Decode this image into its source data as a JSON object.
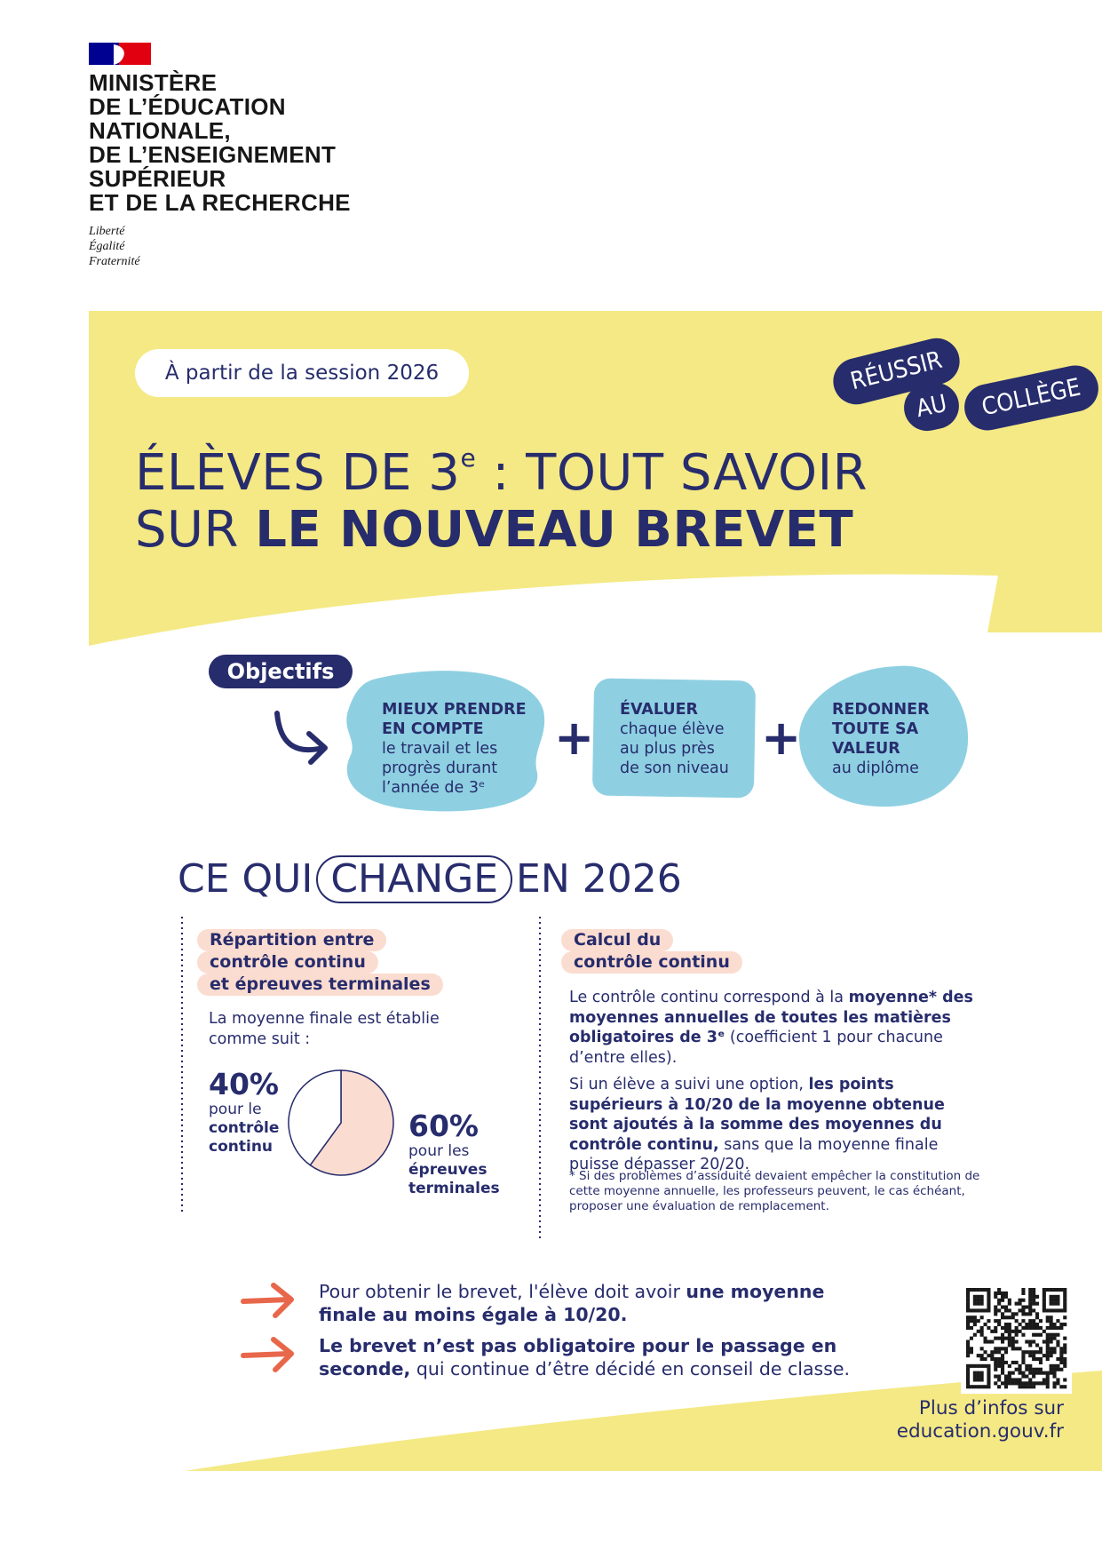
{
  "colors": {
    "navy": "#272c6c",
    "yellow": "#f4e984",
    "blue": "#8ed0e2",
    "pink": "#fbdcd0",
    "orange": "#e8674a",
    "pie_terminal": "#fbdcd0",
    "pie_continu": "#ffffff"
  },
  "logo": {
    "ministry_lines": [
      "MINISTÈRE",
      "DE L’ÉDUCATION",
      "NATIONALE,",
      "DE L’ENSEIGNEMENT",
      "SUPÉRIEUR",
      "ET DE LA RECHERCHE"
    ],
    "devise": [
      "Liberté",
      "Égalité",
      "Fraternité"
    ],
    "icon": "marianne-flag-icon"
  },
  "header": {
    "session": "À partir de la session 2026",
    "title_line1": "ÉLÈVES DE 3",
    "title_sup": "e",
    "title_line1_end": " : TOUT SAVOIR",
    "title_line2_regular": "SUR ",
    "title_line2_bold": "LE NOUVEAU BREVET",
    "stickers": [
      "RÉUSSIR",
      "AU",
      "COLLÈGE"
    ]
  },
  "objectifs": {
    "label": "Objectifs",
    "items": [
      {
        "bold": [
          "MIEUX PRENDRE",
          "EN COMPTE"
        ],
        "text": [
          "le travail et les",
          "progrès durant",
          "l’année de 3ᵉ"
        ]
      },
      {
        "bold": [
          "ÉVALUER"
        ],
        "text": [
          "chaque élève",
          "au plus près",
          "de son niveau"
        ]
      },
      {
        "bold": [
          "REDONNER",
          "TOUTE SA",
          "VALEUR"
        ],
        "text": [
          "au diplôme"
        ]
      }
    ],
    "plus": "+"
  },
  "changes": {
    "heading_before": "CE QUI",
    "heading_highlight": "CHANGE",
    "heading_after": "EN 2026",
    "left": {
      "label_lines": [
        "Répartition entre",
        "contrôle continu",
        "et épreuves terminales"
      ],
      "intro": "La moyenne finale est établie comme suit :",
      "pie": {
        "type": "pie",
        "slices": [
          {
            "label": "contrôle continu",
            "value": 40
          },
          {
            "label": "épreuves terminales",
            "value": 60
          }
        ]
      },
      "pct_continu": "40%",
      "pct_continu_pre": "pour le",
      "pct_continu_lines": [
        "contrôle",
        "continu"
      ],
      "pct_term": "60%",
      "pct_term_pre": "pour les",
      "pct_term_lines": [
        "épreuves",
        "terminales"
      ]
    },
    "right": {
      "label_lines": [
        "Calcul du",
        "contrôle continu"
      ],
      "p1": {
        "a": "Le contrôle continu correspond à la ",
        "b": "moyenne* des moyennes annuelles de toutes les matières obligatoires de 3ᵉ",
        "c": " (coefficient 1 pour chacune d’entre elles)."
      },
      "p2": {
        "a": "Si un élève a suivi une option, ",
        "b": "les points supérieurs à 10/20 de la moyenne obtenue sont ajoutés à la somme des moyennes du contrôle continu,",
        "c": " sans que la moyenne finale puisse dépasser 20/20."
      },
      "footnote": "* Si des problèmes d’assiduité devaient empêcher la constitution de cette moyenne annuelle, les professeurs peuvent, le cas échéant, proposer une évaluation de remplacement."
    }
  },
  "bullets": [
    {
      "icon": "arrow-right-icon",
      "a": "Pour obtenir le brevet, l'élève doit avoir ",
      "b": "une moyenne finale au moins égale à 10/20.",
      "c": ""
    },
    {
      "icon": "arrow-right-icon",
      "a": "",
      "b": "Le brevet n’est pas obligatoire pour le passage en seconde,",
      "c": " qui continue d’être décidé en conseil de classe."
    }
  ],
  "more": {
    "line1": "Plus d’infos sur",
    "line2": "education.gouv.fr",
    "qr_icon": "qr-code-icon"
  }
}
